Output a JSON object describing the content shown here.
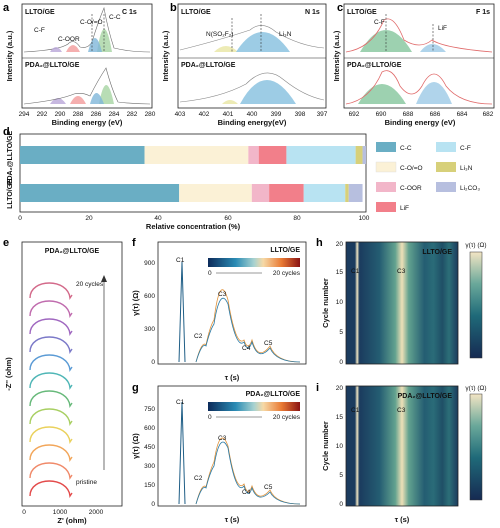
{
  "panels": {
    "a": {
      "letter": "a",
      "top_label": "LLTO/GE",
      "bottom_label": "PDA₂@LLTO/GE",
      "element": "C 1s",
      "peaks": [
        "C-F",
        "C-OOR",
        "C-O/=O",
        "C-C"
      ],
      "ylabel": "Intensity (a.u.)",
      "xlabel": "Binding energy (eV)",
      "xticks": [
        "294",
        "292",
        "290",
        "288",
        "286",
        "284",
        "282",
        "280"
      ]
    },
    "b": {
      "letter": "b",
      "top_label": "LLTO/GE",
      "bottom_label": "PDA₂@LLTO/GE",
      "element": "N 1s",
      "peaks": [
        "N(SO₂F₂)",
        "Li₃N"
      ],
      "ylabel": "Intensity (a.u.)",
      "xlabel": "Binding energy(eV)",
      "xticks": [
        "403",
        "402",
        "401",
        "400",
        "399",
        "398",
        "397"
      ]
    },
    "c": {
      "letter": "c",
      "top_label": "LLTO/GE",
      "bottom_label": "PDA₂@LLTO/GE",
      "element": "F 1s",
      "peaks": [
        "C-F",
        "LiF"
      ],
      "ylabel": "Intensity (a.u.)",
      "xlabel": "Binding energy (eV)",
      "xticks": [
        "692",
        "690",
        "688",
        "686",
        "684",
        "682"
      ]
    },
    "d": {
      "letter": "d",
      "ylabels": [
        "PDA₂@LLTO/GE",
        "LLTO/GE"
      ],
      "xlabel": "Relative concentration (%)",
      "xticks": [
        "0",
        "20",
        "40",
        "60",
        "80",
        "100"
      ],
      "legend": [
        "C-C",
        "C-F",
        "C-O/=O",
        "Li₃N",
        "C-OOR",
        "Li₂CO₃",
        "LiF"
      ]
    },
    "e": {
      "letter": "e",
      "title": "PDA₂@LLTO/GE",
      "arrow_label": "20 cycles",
      "start_label": "pristine",
      "ylabel": "-Z'' (ohm)",
      "xlabel": "Z' (ohm)",
      "xticks": [
        "0",
        "1000",
        "2000"
      ]
    },
    "f": {
      "letter": "f",
      "title": "LLTO/GE",
      "ylabel": "γ(τ) (Ω)",
      "xlabel": "τ (s)",
      "peaks": [
        "C1",
        "C2",
        "C3",
        "C4",
        "C5"
      ],
      "cbar_start": "0",
      "cbar_end": "20 cycles",
      "yticks": [
        "0",
        "300",
        "600",
        "900"
      ]
    },
    "g": {
      "letter": "g",
      "title": "PDA₂@LLTO/GE",
      "ylabel": "γ(τ) (Ω)",
      "xlabel": "τ (s)",
      "peaks": [
        "C1",
        "C2",
        "C3",
        "C4",
        "C5"
      ],
      "cbar_start": "0",
      "cbar_end": "20 cycles",
      "yticks": [
        "0",
        "150",
        "300",
        "450",
        "600",
        "750"
      ]
    },
    "h": {
      "letter": "h",
      "title": "LLTO/GE",
      "peaks": [
        "C1",
        "C3"
      ],
      "ylabel": "Cycle number",
      "cbar_title": "γ(τ) (Ω)",
      "yticks": [
        "0",
        "5",
        "10",
        "15",
        "20"
      ]
    },
    "i": {
      "letter": "i",
      "title": "PDA₂@LLTO/GE",
      "peaks": [
        "C1",
        "C3"
      ],
      "ylabel": "Cycle number",
      "xlabel": "τ (s)",
      "cbar_title": "γ(τ) (Ω)",
      "yticks": [
        "0",
        "5",
        "10",
        "15",
        "20"
      ]
    }
  },
  "chart_data": [
    {
      "type": "bar",
      "title": "",
      "xlabel": "Relative concentration (%)",
      "categories": [
        "PDA₂@LLTO/GE",
        "LLTO/GE"
      ],
      "series": [
        {
          "name": "C-C",
          "values": [
            36,
            46
          ],
          "color": "#6aaec4"
        },
        {
          "name": "C-O/=O",
          "values": [
            30,
            21
          ],
          "color": "#fbf1d6"
        },
        {
          "name": "C-OOR",
          "values": [
            3,
            5
          ],
          "color": "#f2b6c9"
        },
        {
          "name": "LiF",
          "values": [
            8,
            10
          ],
          "color": "#f27f8a"
        },
        {
          "name": "C-F",
          "values": [
            20,
            12
          ],
          "color": "#b8e3f2"
        },
        {
          "name": "Li₃N",
          "values": [
            2,
            1
          ],
          "color": "#d7d07a"
        },
        {
          "name": "Li₂CO₃",
          "values": [
            1,
            4
          ],
          "color": "#b7bfdf"
        }
      ],
      "xlim": [
        0,
        100
      ],
      "orientation": "horizontal"
    }
  ],
  "colors": {
    "cc": "#6aaec4",
    "cf": "#b8e3f2",
    "coo": "#fbf1d6",
    "li3n": "#d7d07a",
    "coor": "#f2b6c9",
    "li2co3": "#b7bfdf",
    "lif": "#f27f8a"
  }
}
